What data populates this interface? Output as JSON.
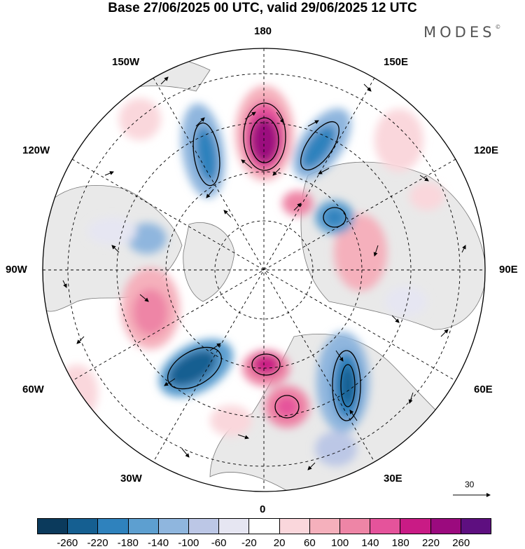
{
  "title": "Base 27/06/2025 00 UTC, valid 29/06/2025 12 UTC",
  "brand": "MODES",
  "brand_mark": "©",
  "longitude_labels": {
    "top": "180",
    "bottom": "0",
    "left": "90W",
    "right": "90E",
    "upper_left_outer": "150W",
    "upper_left": "120W",
    "lower_left": "60W",
    "lower_left_inner": "30W",
    "upper_right_outer": "150E",
    "upper_right": "120E",
    "lower_right": "60E",
    "lower_right_inner": "30E"
  },
  "reference_vector": {
    "label": "30"
  },
  "colorbar": {
    "colors": [
      "#0b3a5c",
      "#155f91",
      "#2f82bd",
      "#5d9fd0",
      "#8fb6de",
      "#bcc7e6",
      "#e6e6f2",
      "#ffffff",
      "#fad7dc",
      "#f5b0bc",
      "#ee85a6",
      "#e5539b",
      "#c91b85",
      "#9b0a7e",
      "#5e0f80"
    ],
    "ticks": [
      "-260",
      "-220",
      "-180",
      "-140",
      "-100",
      "-60",
      "-20",
      "20",
      "60",
      "100",
      "140",
      "180",
      "220",
      "260"
    ]
  }
}
